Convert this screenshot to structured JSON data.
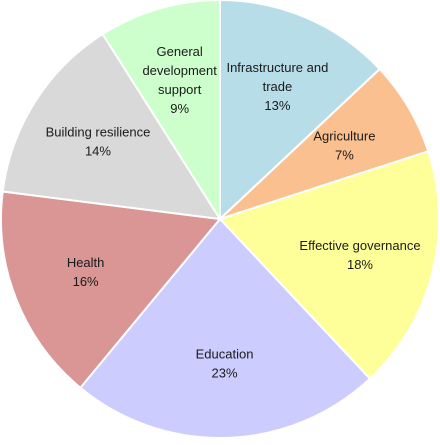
{
  "chart_data": {
    "type": "pie",
    "title": "",
    "slices": [
      {
        "label": [
          "Infrastructure and",
          "trade"
        ],
        "value": 13,
        "value_label": "13%",
        "color": "#b7dde8"
      },
      {
        "label": [
          "Agriculture"
        ],
        "value": 7,
        "value_label": "7%",
        "color": "#fac090"
      },
      {
        "label": [
          "Effective governance"
        ],
        "value": 18,
        "value_label": "18%",
        "color": "#ffff99"
      },
      {
        "label": [
          "Education"
        ],
        "value": 23,
        "value_label": "23%",
        "color": "#ccccff"
      },
      {
        "label": [
          "Health"
        ],
        "value": 16,
        "value_label": "16%",
        "color": "#d99694"
      },
      {
        "label": [
          "Building resilience"
        ],
        "value": 14,
        "value_label": "14%",
        "color": "#d9d9d9"
      },
      {
        "label": [
          "General",
          "development",
          "support"
        ],
        "value": 9,
        "value_label": "9%",
        "color": "#ccffcc"
      }
    ],
    "start": "top",
    "direction": "clockwise",
    "legend": "none"
  }
}
